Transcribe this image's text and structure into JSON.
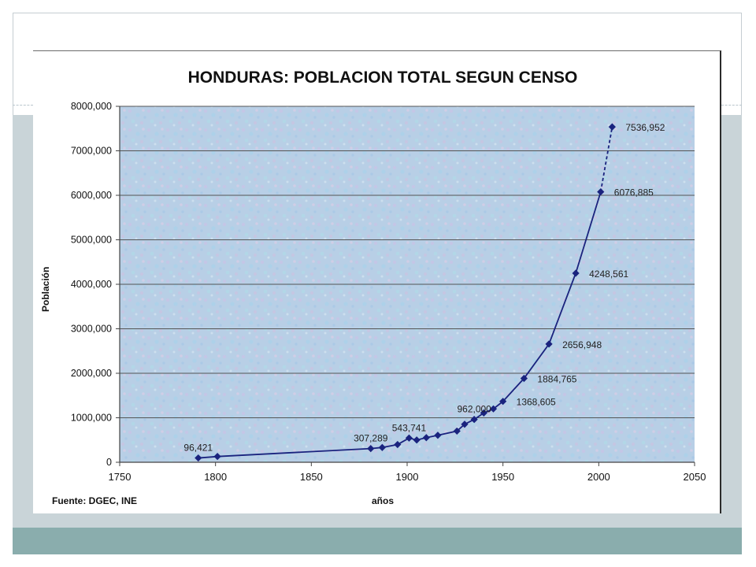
{
  "chart_data": {
    "type": "line",
    "title": "HONDURAS: POBLACION TOTAL SEGUN CENSO",
    "xlabel": "años",
    "ylabel": "Población",
    "source": "Fuente: DGEC, INE",
    "xlim": [
      1750,
      2050
    ],
    "ylim": [
      0,
      8000000
    ],
    "x_ticks": [
      1750,
      1800,
      1850,
      1900,
      1950,
      2000,
      2050
    ],
    "y_ticks": [
      {
        "value": 0,
        "label": "0"
      },
      {
        "value": 1000000,
        "label": "1000,000"
      },
      {
        "value": 2000000,
        "label": "2000,000"
      },
      {
        "value": 3000000,
        "label": "3000,000"
      },
      {
        "value": 4000000,
        "label": "4000,000"
      },
      {
        "value": 5000000,
        "label": "5000,000"
      },
      {
        "value": 6000000,
        "label": "6000,000"
      },
      {
        "value": 7000000,
        "label": "7000,000"
      },
      {
        "value": 8000000,
        "label": "8000,000"
      }
    ],
    "grid": "horizontal",
    "series": [
      {
        "color": "#1a237e",
        "points": [
          {
            "x": 1791,
            "y": 96421,
            "label": "96,421"
          },
          {
            "x": 1801,
            "y": 130000
          },
          {
            "x": 1881,
            "y": 307289,
            "label": "307,289"
          },
          {
            "x": 1887,
            "y": 331917
          },
          {
            "x": 1895,
            "y": 398877
          },
          {
            "x": 1901,
            "y": 543741,
            "label": "543,741"
          },
          {
            "x": 1905,
            "y": 500136
          },
          {
            "x": 1910,
            "y": 553446
          },
          {
            "x": 1916,
            "y": 605997
          },
          {
            "x": 1926,
            "y": 700811
          },
          {
            "x": 1930,
            "y": 854184
          },
          {
            "x": 1935,
            "y": 962000,
            "label": "962,000"
          },
          {
            "x": 1940,
            "y": 1107859
          },
          {
            "x": 1945,
            "y": 1200542
          },
          {
            "x": 1950,
            "y": 1368605,
            "label": "1368,605"
          },
          {
            "x": 1961,
            "y": 1884765,
            "label": "1884,765"
          },
          {
            "x": 1974,
            "y": 2656948,
            "label": "2656,948"
          },
          {
            "x": 1988,
            "y": 4248561,
            "label": "4248,561"
          },
          {
            "x": 2001,
            "y": 6076885,
            "label": "6076,885"
          },
          {
            "x": 2007,
            "y": 7536952,
            "label": "7536,952",
            "projected": true
          }
        ]
      }
    ]
  }
}
